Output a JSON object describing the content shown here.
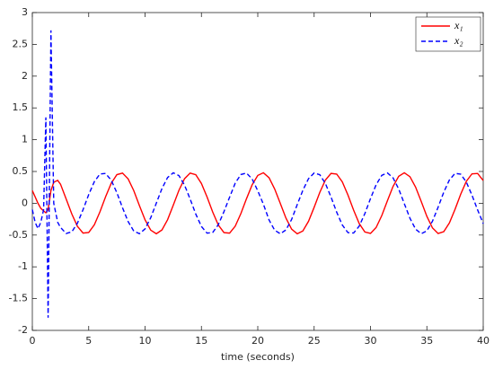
{
  "chart_data": {
    "type": "line",
    "xlabel": "time (seconds)",
    "x": [
      0,
      0.25,
      0.5,
      0.75,
      1,
      1.2,
      1.4,
      1.65,
      1.9,
      2.25,
      2.5,
      3,
      3.5,
      4,
      4.5,
      5,
      5.5,
      6,
      6.5,
      7,
      7.5,
      8,
      8.5,
      9,
      9.5,
      10,
      10.5,
      11,
      11.5,
      12,
      12.5,
      13,
      13.5,
      14,
      14.5,
      15,
      15.5,
      16,
      16.5,
      17,
      17.5,
      18,
      18.5,
      19,
      19.5,
      20,
      20.5,
      21,
      21.5,
      22,
      22.5,
      23,
      23.5,
      24,
      24.5,
      25,
      25.5,
      26,
      26.5,
      27,
      27.5,
      28,
      28.5,
      29,
      29.5,
      30,
      30.5,
      31,
      31.5,
      32,
      32.5,
      33,
      33.5,
      34,
      34.5,
      35,
      35.5,
      36,
      36.5,
      37,
      37.5,
      38,
      38.5,
      39,
      39.5,
      40
    ],
    "series": [
      {
        "name": "x₁",
        "color": "#ff0000",
        "line_style": "solid",
        "values": [
          0.2,
          0.1,
          0.0,
          -0.08,
          -0.12,
          -0.15,
          -0.1,
          0.2,
          0.33,
          0.36,
          0.3,
          0.068,
          -0.168,
          -0.363,
          -0.469,
          -0.46,
          -0.339,
          -0.134,
          0.103,
          0.315,
          0.45,
          0.475,
          0.383,
          0.198,
          -0.036,
          -0.261,
          -0.422,
          -0.48,
          -0.42,
          -0.258,
          -0.032,
          0.202,
          0.386,
          0.475,
          0.449,
          0.312,
          0.099,
          -0.138,
          -0.342,
          -0.461,
          -0.47,
          -0.36,
          -0.162,
          0.072,
          0.291,
          0.438,
          0.48,
          0.402,
          0.224,
          -0.004,
          -0.234,
          -0.406,
          -0.48,
          -0.435,
          -0.284,
          -0.064,
          0.17,
          0.366,
          0.47,
          0.459,
          0.336,
          0.13,
          -0.107,
          -0.319,
          -0.452,
          -0.474,
          -0.381,
          -0.194,
          0.04,
          0.265,
          0.424,
          0.48,
          0.418,
          0.254,
          0.028,
          -0.206,
          -0.388,
          -0.476,
          -0.447,
          -0.309,
          -0.095,
          0.142,
          0.345,
          0.463,
          0.469,
          0.358
        ]
      },
      {
        "name": "x₂",
        "color": "#0000ff",
        "line_style": "dashed",
        "values": [
          -0.1,
          -0.3,
          -0.4,
          -0.3,
          -0.1,
          1.35,
          -1.8,
          2.72,
          0.0,
          -0.3,
          -0.38,
          -0.475,
          -0.45,
          -0.314,
          -0.101,
          0.136,
          0.34,
          0.461,
          0.469,
          0.362,
          0.166,
          -0.07,
          -0.289,
          -0.437,
          -0.479,
          -0.403,
          -0.228,
          0.002,
          0.232,
          0.405,
          0.479,
          0.436,
          0.286,
          0.066,
          -0.17,
          -0.365,
          -0.47,
          -0.46,
          -0.337,
          -0.132,
          0.095,
          0.317,
          0.452,
          0.475,
          0.382,
          0.196,
          -0.015,
          -0.263,
          -0.424,
          -0.48,
          -0.419,
          -0.256,
          -0.021,
          0.204,
          0.387,
          0.476,
          0.449,
          0.311,
          0.097,
          -0.14,
          -0.343,
          -0.462,
          -0.468,
          -0.359,
          -0.162,
          0.074,
          0.292,
          0.439,
          0.478,
          0.4,
          0.225,
          -0.006,
          -0.236,
          -0.407,
          -0.479,
          -0.434,
          -0.282,
          -0.061,
          0.174,
          0.367,
          0.47,
          0.458,
          0.334,
          0.128,
          -0.103,
          -0.32
        ]
      }
    ],
    "xlim": [
      0,
      40
    ],
    "xticks": [
      0,
      5,
      10,
      15,
      20,
      25,
      30,
      35,
      40
    ],
    "ylim": [
      -2,
      3
    ],
    "yticks": [
      -2,
      -1.5,
      -1,
      -0.5,
      0,
      0.5,
      1,
      1.5,
      2,
      2.5,
      3
    ],
    "legend": "upper right",
    "grid": false
  }
}
